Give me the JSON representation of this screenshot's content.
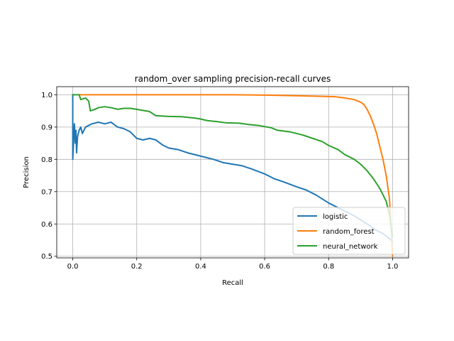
{
  "chart_data": {
    "type": "line",
    "title": "random_over sampling precision-recall curves",
    "xlabel": "Recall",
    "ylabel": "Precision",
    "xlim": [
      -0.05,
      1.05
    ],
    "ylim": [
      0.495,
      1.025
    ],
    "xticks": [
      0.0,
      0.2,
      0.4,
      0.6,
      0.8,
      1.0
    ],
    "xtick_labels": [
      "0.0",
      "0.2",
      "0.4",
      "0.6",
      "0.8",
      "1.0"
    ],
    "yticks": [
      0.5,
      0.6,
      0.7,
      0.8,
      0.9,
      1.0
    ],
    "ytick_labels": [
      "0.5",
      "0.6",
      "0.7",
      "0.8",
      "0.9",
      "1.0"
    ],
    "grid": true,
    "legend_position": "lower-right",
    "series": [
      {
        "name": "logistic",
        "color": "#1f77b4",
        "points": [
          [
            0.0,
            1.0
          ],
          [
            0.0,
            0.8
          ],
          [
            0.005,
            0.91
          ],
          [
            0.008,
            0.85
          ],
          [
            0.01,
            0.89
          ],
          [
            0.012,
            0.82
          ],
          [
            0.015,
            0.87
          ],
          [
            0.02,
            0.89
          ],
          [
            0.025,
            0.9
          ],
          [
            0.03,
            0.88
          ],
          [
            0.04,
            0.9
          ],
          [
            0.05,
            0.905
          ],
          [
            0.06,
            0.91
          ],
          [
            0.08,
            0.915
          ],
          [
            0.1,
            0.91
          ],
          [
            0.12,
            0.915
          ],
          [
            0.14,
            0.9
          ],
          [
            0.16,
            0.895
          ],
          [
            0.18,
            0.885
          ],
          [
            0.2,
            0.865
          ],
          [
            0.22,
            0.86
          ],
          [
            0.24,
            0.865
          ],
          [
            0.26,
            0.86
          ],
          [
            0.28,
            0.845
          ],
          [
            0.3,
            0.835
          ],
          [
            0.33,
            0.83
          ],
          [
            0.36,
            0.82
          ],
          [
            0.4,
            0.81
          ],
          [
            0.44,
            0.8
          ],
          [
            0.47,
            0.79
          ],
          [
            0.5,
            0.785
          ],
          [
            0.53,
            0.78
          ],
          [
            0.56,
            0.77
          ],
          [
            0.6,
            0.755
          ],
          [
            0.63,
            0.74
          ],
          [
            0.66,
            0.73
          ],
          [
            0.7,
            0.715
          ],
          [
            0.73,
            0.705
          ],
          [
            0.76,
            0.69
          ],
          [
            0.8,
            0.665
          ],
          [
            0.84,
            0.645
          ],
          [
            0.88,
            0.625
          ],
          [
            0.92,
            0.6
          ],
          [
            0.95,
            0.58
          ],
          [
            0.97,
            0.57
          ],
          [
            0.99,
            0.555
          ],
          [
            1.0,
            0.545
          ]
        ]
      },
      {
        "name": "random_forest",
        "color": "#ff7f0e",
        "points": [
          [
            0.02,
            1.0
          ],
          [
            0.1,
            1.0
          ],
          [
            0.2,
            1.0
          ],
          [
            0.4,
            1.0
          ],
          [
            0.5,
            1.0
          ],
          [
            0.6,
            0.999
          ],
          [
            0.7,
            0.997
          ],
          [
            0.78,
            0.995
          ],
          [
            0.82,
            0.994
          ],
          [
            0.85,
            0.99
          ],
          [
            0.88,
            0.985
          ],
          [
            0.9,
            0.977
          ],
          [
            0.91,
            0.97
          ],
          [
            0.92,
            0.955
          ],
          [
            0.93,
            0.935
          ],
          [
            0.94,
            0.91
          ],
          [
            0.95,
            0.88
          ],
          [
            0.96,
            0.84
          ],
          [
            0.97,
            0.8
          ],
          [
            0.98,
            0.75
          ],
          [
            0.99,
            0.68
          ],
          [
            0.995,
            0.6
          ],
          [
            1.0,
            0.5
          ]
        ]
      },
      {
        "name": "neural_network",
        "color": "#2ca02c",
        "points": [
          [
            0.0,
            1.0
          ],
          [
            0.02,
            1.0
          ],
          [
            0.025,
            0.985
          ],
          [
            0.04,
            0.99
          ],
          [
            0.05,
            0.98
          ],
          [
            0.055,
            0.95
          ],
          [
            0.07,
            0.955
          ],
          [
            0.08,
            0.96
          ],
          [
            0.1,
            0.963
          ],
          [
            0.12,
            0.96
          ],
          [
            0.14,
            0.955
          ],
          [
            0.16,
            0.958
          ],
          [
            0.18,
            0.958
          ],
          [
            0.2,
            0.955
          ],
          [
            0.24,
            0.948
          ],
          [
            0.26,
            0.935
          ],
          [
            0.3,
            0.933
          ],
          [
            0.34,
            0.932
          ],
          [
            0.38,
            0.928
          ],
          [
            0.4,
            0.925
          ],
          [
            0.42,
            0.92
          ],
          [
            0.45,
            0.917
          ],
          [
            0.48,
            0.913
          ],
          [
            0.52,
            0.912
          ],
          [
            0.55,
            0.908
          ],
          [
            0.58,
            0.905
          ],
          [
            0.62,
            0.898
          ],
          [
            0.64,
            0.89
          ],
          [
            0.68,
            0.885
          ],
          [
            0.72,
            0.875
          ],
          [
            0.75,
            0.865
          ],
          [
            0.78,
            0.855
          ],
          [
            0.8,
            0.843
          ],
          [
            0.83,
            0.83
          ],
          [
            0.85,
            0.815
          ],
          [
            0.88,
            0.8
          ],
          [
            0.9,
            0.785
          ],
          [
            0.92,
            0.765
          ],
          [
            0.94,
            0.74
          ],
          [
            0.96,
            0.71
          ],
          [
            0.98,
            0.67
          ],
          [
            0.99,
            0.63
          ],
          [
            1.0,
            0.56
          ]
        ]
      }
    ]
  }
}
